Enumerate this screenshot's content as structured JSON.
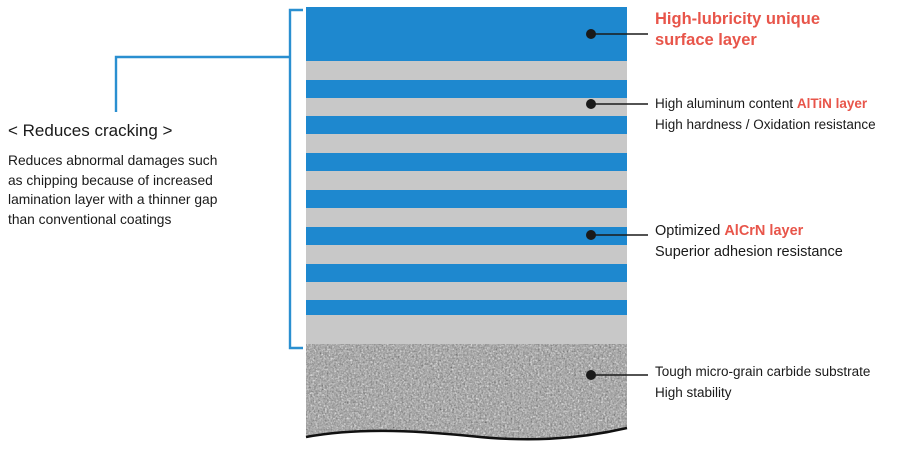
{
  "left_panel": {
    "title": "< Reduces cracking >",
    "description_lines": [
      "Reduces abnormal damages such",
      "as chipping because of increased",
      "lamination layer with a thinner gap",
      "than conventional coatings"
    ]
  },
  "labels": {
    "surface_layer": {
      "line1": "High-lubricity unique",
      "line2": "surface layer"
    },
    "altin_layer": {
      "line1_prefix": "High aluminum content ",
      "line1_highlight": "AlTiN layer",
      "line2": "High hardness / Oxidation resistance"
    },
    "alcrn_layer": {
      "line1_prefix": "Optimized ",
      "line1_highlight": "AlCrN layer",
      "line2": "Superior adhesion resistance"
    },
    "substrate": {
      "line1": "Tough micro-grain carbide substrate",
      "line2": "High stability"
    }
  },
  "colors": {
    "blue_layer": "#1e88cf",
    "gray_layer": "#c8c8c8",
    "accent_text": "#e8554a",
    "bracket": "#2a8fd0",
    "text": "#1a1a1a",
    "leader": "#1a1a1a"
  }
}
